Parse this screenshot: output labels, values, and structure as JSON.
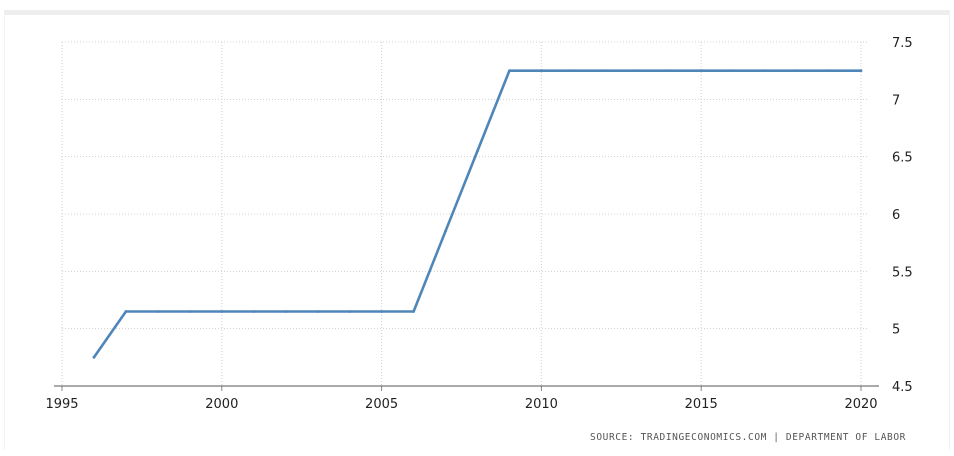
{
  "chart_data": {
    "type": "line",
    "title": "",
    "xlabel": "",
    "ylabel": "",
    "x": [
      1996,
      1997,
      1998,
      1999,
      2000,
      2001,
      2002,
      2003,
      2004,
      2005,
      2006,
      2007,
      2008,
      2009,
      2010,
      2011,
      2012,
      2013,
      2014,
      2015,
      2016,
      2017,
      2018,
      2019,
      2020
    ],
    "series": [
      {
        "values": [
          4.75,
          5.15,
          5.15,
          5.15,
          5.15,
          5.15,
          5.15,
          5.15,
          5.15,
          5.15,
          5.15,
          5.85,
          6.55,
          7.25,
          7.25,
          7.25,
          7.25,
          7.25,
          7.25,
          7.25,
          7.25,
          7.25,
          7.25,
          7.25,
          7.25
        ],
        "color": "#4f86b9"
      }
    ],
    "xlim": [
      1995,
      2020
    ],
    "ylim": [
      4.5,
      7.5
    ],
    "xticks": [
      "1995",
      "2000",
      "2005",
      "2010",
      "2015",
      "2020"
    ],
    "yticks": [
      "4.5",
      "5",
      "5.5",
      "6",
      "6.5",
      "7",
      "7.5"
    ],
    "y_axis_side": "right",
    "grid": true,
    "legend": "none"
  },
  "source": "SOURCE: TRADINGECONOMICS.COM | DEPARTMENT OF LABOR"
}
